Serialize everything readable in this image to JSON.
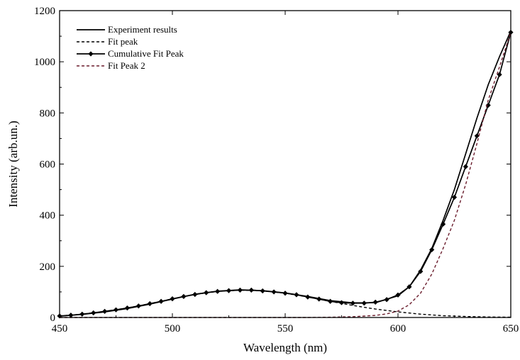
{
  "chart_data": {
    "type": "line",
    "xlabel": "Wavelength (nm)",
    "ylabel": "Intensity (arb.un.)",
    "xlim": [
      450,
      650
    ],
    "ylim": [
      0,
      1200
    ],
    "x_ticks": [
      450,
      500,
      550,
      600,
      650
    ],
    "y_ticks": [
      0,
      200,
      400,
      600,
      800,
      1000,
      1200
    ],
    "grid": false,
    "legend_position": "top-left",
    "series": [
      {
        "name": "Experiment results",
        "style": "solid",
        "color": "#000000",
        "x": [
          450,
          460,
          470,
          480,
          490,
          500,
          510,
          520,
          530,
          540,
          550,
          560,
          570,
          580,
          590,
          600,
          605,
          610,
          615,
          620,
          625,
          630,
          635,
          640,
          645,
          650
        ],
        "y": [
          5,
          12,
          22,
          35,
          52,
          72,
          91,
          103,
          108,
          105,
          96,
          82,
          66,
          57,
          58,
          85,
          120,
          185,
          270,
          380,
          500,
          640,
          780,
          910,
          1020,
          1120
        ]
      },
      {
        "name": "Fit peak",
        "style": "dashed",
        "color": "#000000",
        "x": [
          450,
          460,
          470,
          480,
          490,
          500,
          510,
          520,
          530,
          540,
          550,
          560,
          570,
          580,
          590,
          600,
          610,
          620,
          630,
          640,
          650
        ],
        "y": [
          6,
          13,
          24,
          37,
          54,
          73,
          90,
          102,
          107,
          104,
          95,
          80,
          63,
          47,
          33,
          22,
          13,
          7,
          4,
          2,
          1
        ]
      },
      {
        "name": "Cumulative Fit Peak",
        "style": "solid-diamond",
        "color": "#000000",
        "x": [
          450,
          455,
          460,
          465,
          470,
          475,
          480,
          485,
          490,
          495,
          500,
          505,
          510,
          515,
          520,
          525,
          530,
          535,
          540,
          545,
          550,
          555,
          560,
          565,
          570,
          575,
          580,
          585,
          590,
          595,
          600,
          605,
          610,
          615,
          620,
          625,
          630,
          635,
          640,
          645,
          650
        ],
        "y": [
          6,
          9,
          13,
          18,
          24,
          30,
          37,
          45,
          54,
          63,
          73,
          82,
          90,
          97,
          102,
          105,
          107,
          107,
          104,
          100,
          95,
          89,
          80,
          72,
          63,
          58,
          56,
          56,
          60,
          70,
          88,
          120,
          180,
          265,
          365,
          470,
          590,
          710,
          830,
          950,
          1115
        ]
      },
      {
        "name": "Fit Peak 2",
        "style": "dashed",
        "color": "#6b1d2d",
        "x": [
          450,
          560,
          570,
          580,
          590,
          595,
          600,
          605,
          610,
          615,
          620,
          625,
          630,
          635,
          640,
          645,
          650
        ],
        "y": [
          0,
          0,
          1,
          3,
          8,
          14,
          25,
          50,
          95,
          170,
          270,
          380,
          520,
          680,
          850,
          980,
          1115
        ]
      }
    ]
  }
}
